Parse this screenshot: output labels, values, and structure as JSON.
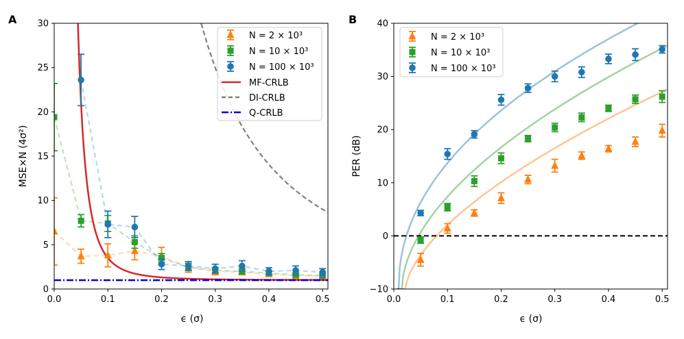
{
  "chart_data": [
    {
      "panel": "A",
      "type": "line",
      "xlabel": "ϵ (σ)",
      "ylabel": "MSE×N (4σ²)",
      "xlim": [
        0,
        0.51
      ],
      "ylim": [
        0,
        30
      ],
      "xticks": [
        0,
        0.1,
        0.2,
        0.3,
        0.4,
        0.5
      ],
      "xtick_labels": [
        "0.0",
        "0.1",
        "0.2",
        "0.3",
        "0.4",
        "0.5"
      ],
      "yticks": [
        0,
        5,
        10,
        15,
        20,
        25,
        30
      ],
      "ytick_labels": [
        "0",
        "5",
        "10",
        "15",
        "20",
        "25",
        "30"
      ],
      "legend_position": "top-right",
      "x": [
        0,
        0.05,
        0.1,
        0.15,
        0.2,
        0.25,
        0.3,
        0.35,
        0.4,
        0.45,
        0.5
      ],
      "series": [
        {
          "name": "N = 2 × 10³",
          "marker": "triangle",
          "color": "#ff7f0e",
          "values": [
            6.5,
            3.7,
            3.8,
            4.3,
            3.7,
            2.4,
            2.0,
            1.9,
            1.7,
            1.5,
            1.5
          ],
          "errors": [
            3.8,
            0.8,
            1.3,
            1.0,
            1.0,
            0.5,
            0.4,
            0.3,
            0.3,
            0.3,
            0.3
          ]
        },
        {
          "name": "N = 10 × 10³",
          "marker": "square",
          "color": "#2ca02c",
          "values": [
            19.4,
            7.7,
            7.4,
            5.3,
            3.5,
            2.5,
            2.1,
            2.0,
            1.8,
            1.6,
            1.5
          ],
          "errors": [
            3.8,
            0.7,
            0.9,
            0.7,
            0.5,
            0.4,
            0.3,
            0.3,
            0.2,
            0.2,
            0.2
          ]
        },
        {
          "name": "N = 100 × 10³",
          "marker": "circle",
          "color": "#1f77b4",
          "values": [
            null,
            23.6,
            7.3,
            7.0,
            2.8,
            2.6,
            2.3,
            2.6,
            2.0,
            2.1,
            1.9
          ],
          "errors": [
            null,
            2.9,
            1.5,
            1.2,
            0.6,
            0.5,
            0.5,
            0.6,
            0.4,
            0.5,
            0.4
          ]
        }
      ],
      "reference_lines": [
        {
          "name": "MF-CRLB",
          "style": "solid",
          "color": "#d62728"
        },
        {
          "name": "DI-CRLB",
          "style": "dashed",
          "color": "#808080"
        },
        {
          "name": "Q-CRLB",
          "style": "dashdot",
          "color": "#0000dd",
          "value": 1.0
        }
      ]
    },
    {
      "panel": "B",
      "type": "line",
      "xlabel": "ϵ (σ)",
      "ylabel": "PER (dB)",
      "xlim": [
        0,
        0.51
      ],
      "ylim": [
        -10,
        40
      ],
      "xticks": [
        0,
        0.1,
        0.2,
        0.3,
        0.4,
        0.5
      ],
      "xtick_labels": [
        "0.0",
        "0.1",
        "0.2",
        "0.3",
        "0.4",
        "0.5"
      ],
      "yticks": [
        -10,
        0,
        10,
        20,
        30,
        40
      ],
      "ytick_labels": [
        "−10",
        "0",
        "10",
        "20",
        "30",
        "40"
      ],
      "legend_position": "top-left",
      "x": [
        0.05,
        0.1,
        0.15,
        0.2,
        0.25,
        0.3,
        0.35,
        0.4,
        0.45,
        0.5
      ],
      "series": [
        {
          "name": "N = 2 × 10³",
          "marker": "triangle",
          "color": "#ff7f0e",
          "values": [
            -4.5,
            1.4,
            4.3,
            7.1,
            10.6,
            13.2,
            15.1,
            16.4,
            17.7,
            19.8
          ],
          "errors": [
            1.2,
            0.9,
            0.6,
            1.0,
            0.8,
            1.2,
            0.7,
            0.6,
            0.9,
            1.2
          ]
        },
        {
          "name": "N = 10 × 10³",
          "marker": "square",
          "color": "#2ca02c",
          "values": [
            -0.8,
            5.4,
            10.3,
            14.6,
            18.3,
            20.4,
            22.3,
            24.0,
            25.7,
            26.2
          ],
          "errors": [
            0.6,
            0.7,
            1.0,
            1.0,
            0.6,
            0.8,
            0.8,
            0.6,
            0.8,
            1.1
          ]
        },
        {
          "name": "N = 100 × 10³",
          "marker": "circle",
          "color": "#1f77b4",
          "values": [
            4.3,
            15.4,
            19.1,
            25.6,
            27.8,
            30.0,
            30.8,
            33.3,
            34.1,
            35.1
          ],
          "errors": [
            0.5,
            1.0,
            0.7,
            1.0,
            0.8,
            1.0,
            1.0,
            0.9,
            1.1,
            0.7
          ]
        }
      ],
      "reference_lines": [
        {
          "name": "0 dB",
          "style": "dashed",
          "color": "#000000",
          "value": 0
        }
      ]
    }
  ]
}
